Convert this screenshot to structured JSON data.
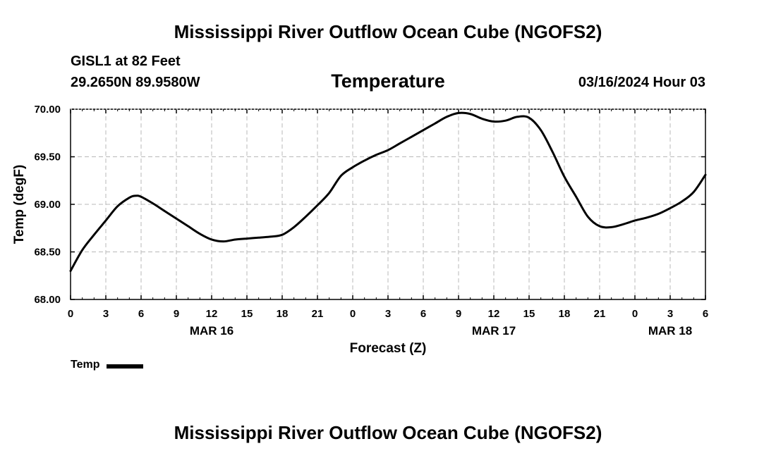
{
  "header": {
    "title": "Mississippi River Outflow Ocean Cube (NGOFS2)",
    "station": "GISL1 at 82 Feet",
    "coordinates": "29.2650N  89.9580W",
    "variable": "Temperature",
    "datetime": "03/16/2024 Hour 03"
  },
  "footer": {
    "title": "Mississippi River Outflow Ocean Cube (NGOFS2)"
  },
  "legend": {
    "label": "Temp",
    "color": "#000000"
  },
  "chart_data": {
    "type": "line",
    "title": "Temperature",
    "xlabel": "Forecast (Z)",
    "ylabel": "Temp (degF)",
    "xlim": [
      0,
      54
    ],
    "ylim": [
      68.0,
      70.0
    ],
    "grid": true,
    "legend_position": "bottom-left",
    "x_ticks": [
      0,
      3,
      6,
      9,
      12,
      15,
      18,
      21,
      24,
      27,
      30,
      33,
      36,
      39,
      42,
      45,
      48,
      51,
      54
    ],
    "x_tick_labels": [
      "0",
      "3",
      "6",
      "9",
      "12",
      "15",
      "18",
      "21",
      "0",
      "3",
      "6",
      "9",
      "12",
      "15",
      "18",
      "21",
      "0",
      "3",
      "6"
    ],
    "date_labels": [
      {
        "x": 12,
        "label": "MAR 16"
      },
      {
        "x": 36,
        "label": "MAR 17"
      },
      {
        "x": 51,
        "label": "MAR 18"
      }
    ],
    "y_ticks": [
      68.0,
      68.5,
      69.0,
      69.5,
      70.0
    ],
    "y_tick_labels": [
      "68.00",
      "68.50",
      "69.00",
      "69.50",
      "70.00"
    ],
    "series": [
      {
        "name": "Temp",
        "color": "#000000",
        "x": [
          0,
          1,
          2,
          3,
          4,
          5,
          5.5,
          6,
          7,
          8,
          9,
          10,
          11,
          12,
          13,
          14,
          15,
          16,
          17,
          18,
          19,
          20,
          21,
          22,
          23,
          24,
          25,
          26,
          27,
          28,
          29,
          30,
          31,
          32,
          33,
          34,
          35,
          36,
          37,
          38,
          39,
          40,
          41,
          42,
          43,
          44,
          45,
          46,
          47,
          48,
          49,
          50,
          51,
          52,
          53,
          54
        ],
        "values": [
          68.3,
          68.52,
          68.68,
          68.83,
          68.98,
          69.07,
          69.09,
          69.08,
          69.01,
          68.93,
          68.85,
          68.77,
          68.69,
          68.63,
          68.61,
          68.63,
          68.64,
          68.65,
          68.66,
          68.68,
          68.76,
          68.87,
          68.99,
          69.12,
          69.3,
          69.39,
          69.46,
          69.52,
          69.57,
          69.64,
          69.71,
          69.78,
          69.85,
          69.92,
          69.96,
          69.95,
          69.9,
          69.87,
          69.88,
          69.92,
          69.91,
          69.78,
          69.55,
          69.29,
          69.08,
          68.87,
          68.77,
          68.76,
          68.79,
          68.83,
          68.86,
          68.9,
          68.96,
          69.03,
          69.13,
          69.31
        ]
      }
    ]
  }
}
